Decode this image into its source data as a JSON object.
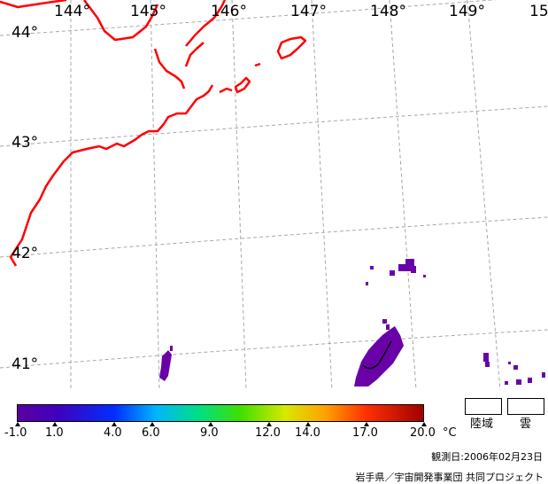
{
  "map": {
    "longitude_labels": [
      "144°",
      "145°",
      "146°",
      "147°",
      "148°",
      "149°",
      "15"
    ],
    "latitude_labels": [
      "44°",
      "43°",
      "42°",
      "41°"
    ],
    "colors": {
      "coastline": "#ff0000",
      "graticule": "#aaaaaa",
      "sst_low": "#6600a0",
      "contour": "#000000"
    }
  },
  "colorbar": {
    "tick_labels": [
      "-1.0",
      "1.0",
      "4.0",
      "6.0",
      "9.0",
      "12.0",
      "14.0",
      "17.0",
      "20.0"
    ],
    "unit": "°C",
    "range": [
      -1.0,
      20.0
    ]
  },
  "legend": {
    "land": "陸域",
    "cloud": "雲"
  },
  "footer": {
    "observation_date": "観測日:2006年02月23日",
    "credit": "岩手県／宇宙開発事業団 共同プロジェクト"
  }
}
